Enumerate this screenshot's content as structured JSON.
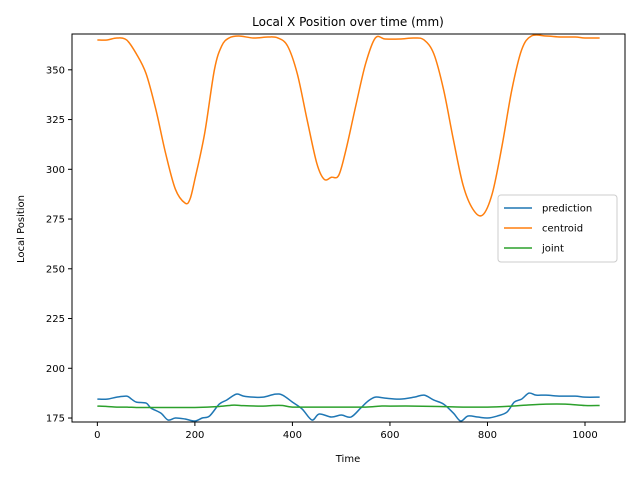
{
  "chart_data": {
    "type": "line",
    "title": "Local X Position over time (mm)",
    "xlabel": "Time",
    "ylabel": "Local Position",
    "xlim": [
      -52,
      1082
    ],
    "ylim": [
      173,
      368
    ],
    "xticks": [
      0,
      200,
      400,
      600,
      800,
      1000
    ],
    "yticks": [
      175,
      200,
      225,
      250,
      275,
      300,
      325,
      350
    ],
    "grid": false,
    "legend_position": "center-right",
    "series": [
      {
        "name": "prediction",
        "color": "#1f77b4",
        "x": [
          0,
          20,
          40,
          60,
          70,
          80,
          100,
          110,
          130,
          145,
          160,
          180,
          200,
          215,
          230,
          250,
          265,
          285,
          300,
          320,
          340,
          365,
          380,
          400,
          420,
          440,
          455,
          480,
          500,
          520,
          540,
          555,
          570,
          590,
          620,
          650,
          670,
          690,
          710,
          730,
          745,
          760,
          780,
          800,
          820,
          840,
          855,
          870,
          885,
          900,
          920,
          950,
          980,
          1000,
          1030
        ],
        "y": [
          184.5,
          184.5,
          185.5,
          186,
          184.5,
          183,
          182.5,
          180,
          177.5,
          174,
          175,
          174.5,
          173.5,
          175,
          176,
          182,
          184,
          187,
          186,
          185.5,
          185.5,
          187,
          186.5,
          183,
          179.5,
          174,
          177,
          175.5,
          176.5,
          175.5,
          180,
          183.5,
          185.5,
          185,
          184.5,
          185.5,
          186.5,
          184,
          182,
          177.5,
          173.5,
          176,
          175.5,
          175,
          176,
          178,
          183,
          184.5,
          187.5,
          186.5,
          186.5,
          186,
          186,
          185.5,
          185.5
        ]
      },
      {
        "name": "centroid",
        "color": "#ff7f0e",
        "x": [
          0,
          20,
          40,
          60,
          80,
          100,
          120,
          140,
          160,
          180,
          190,
          200,
          220,
          240,
          255,
          270,
          290,
          320,
          350,
          370,
          390,
          410,
          430,
          450,
          465,
          480,
          495,
          510,
          530,
          550,
          570,
          590,
          620,
          650,
          670,
          690,
          710,
          730,
          750,
          770,
          790,
          810,
          830,
          850,
          870,
          890,
          920,
          950,
          980,
          1000,
          1030
        ],
        "y": [
          365,
          365,
          366,
          365,
          358,
          348,
          330,
          308,
          290,
          283,
          285,
          295,
          318,
          350,
          362,
          366,
          367,
          366,
          366.5,
          366,
          362,
          348,
          325,
          303,
          295,
          296,
          297,
          310,
          332,
          353,
          366,
          365.5,
          365.5,
          366,
          365,
          358,
          340,
          315,
          292,
          280,
          277,
          288,
          312,
          340,
          360,
          367,
          367,
          366.5,
          366.5,
          366,
          366
        ]
      },
      {
        "name": "joint",
        "color": "#2ca02c",
        "x": [
          0,
          20,
          40,
          60,
          80,
          100,
          150,
          200,
          250,
          280,
          300,
          340,
          360,
          380,
          400,
          450,
          500,
          550,
          580,
          600,
          650,
          700,
          750,
          800,
          850,
          880,
          920,
          960,
          1000,
          1030
        ],
        "y": [
          181,
          180.8,
          180.5,
          180.5,
          180.3,
          180.3,
          180.3,
          180.3,
          180.8,
          181.5,
          181.2,
          181,
          181.3,
          181.3,
          180.5,
          180.5,
          180.5,
          180.5,
          181,
          181,
          181,
          180.8,
          180.5,
          180.5,
          181,
          181.5,
          182,
          182,
          181.3,
          181.3
        ]
      }
    ]
  }
}
